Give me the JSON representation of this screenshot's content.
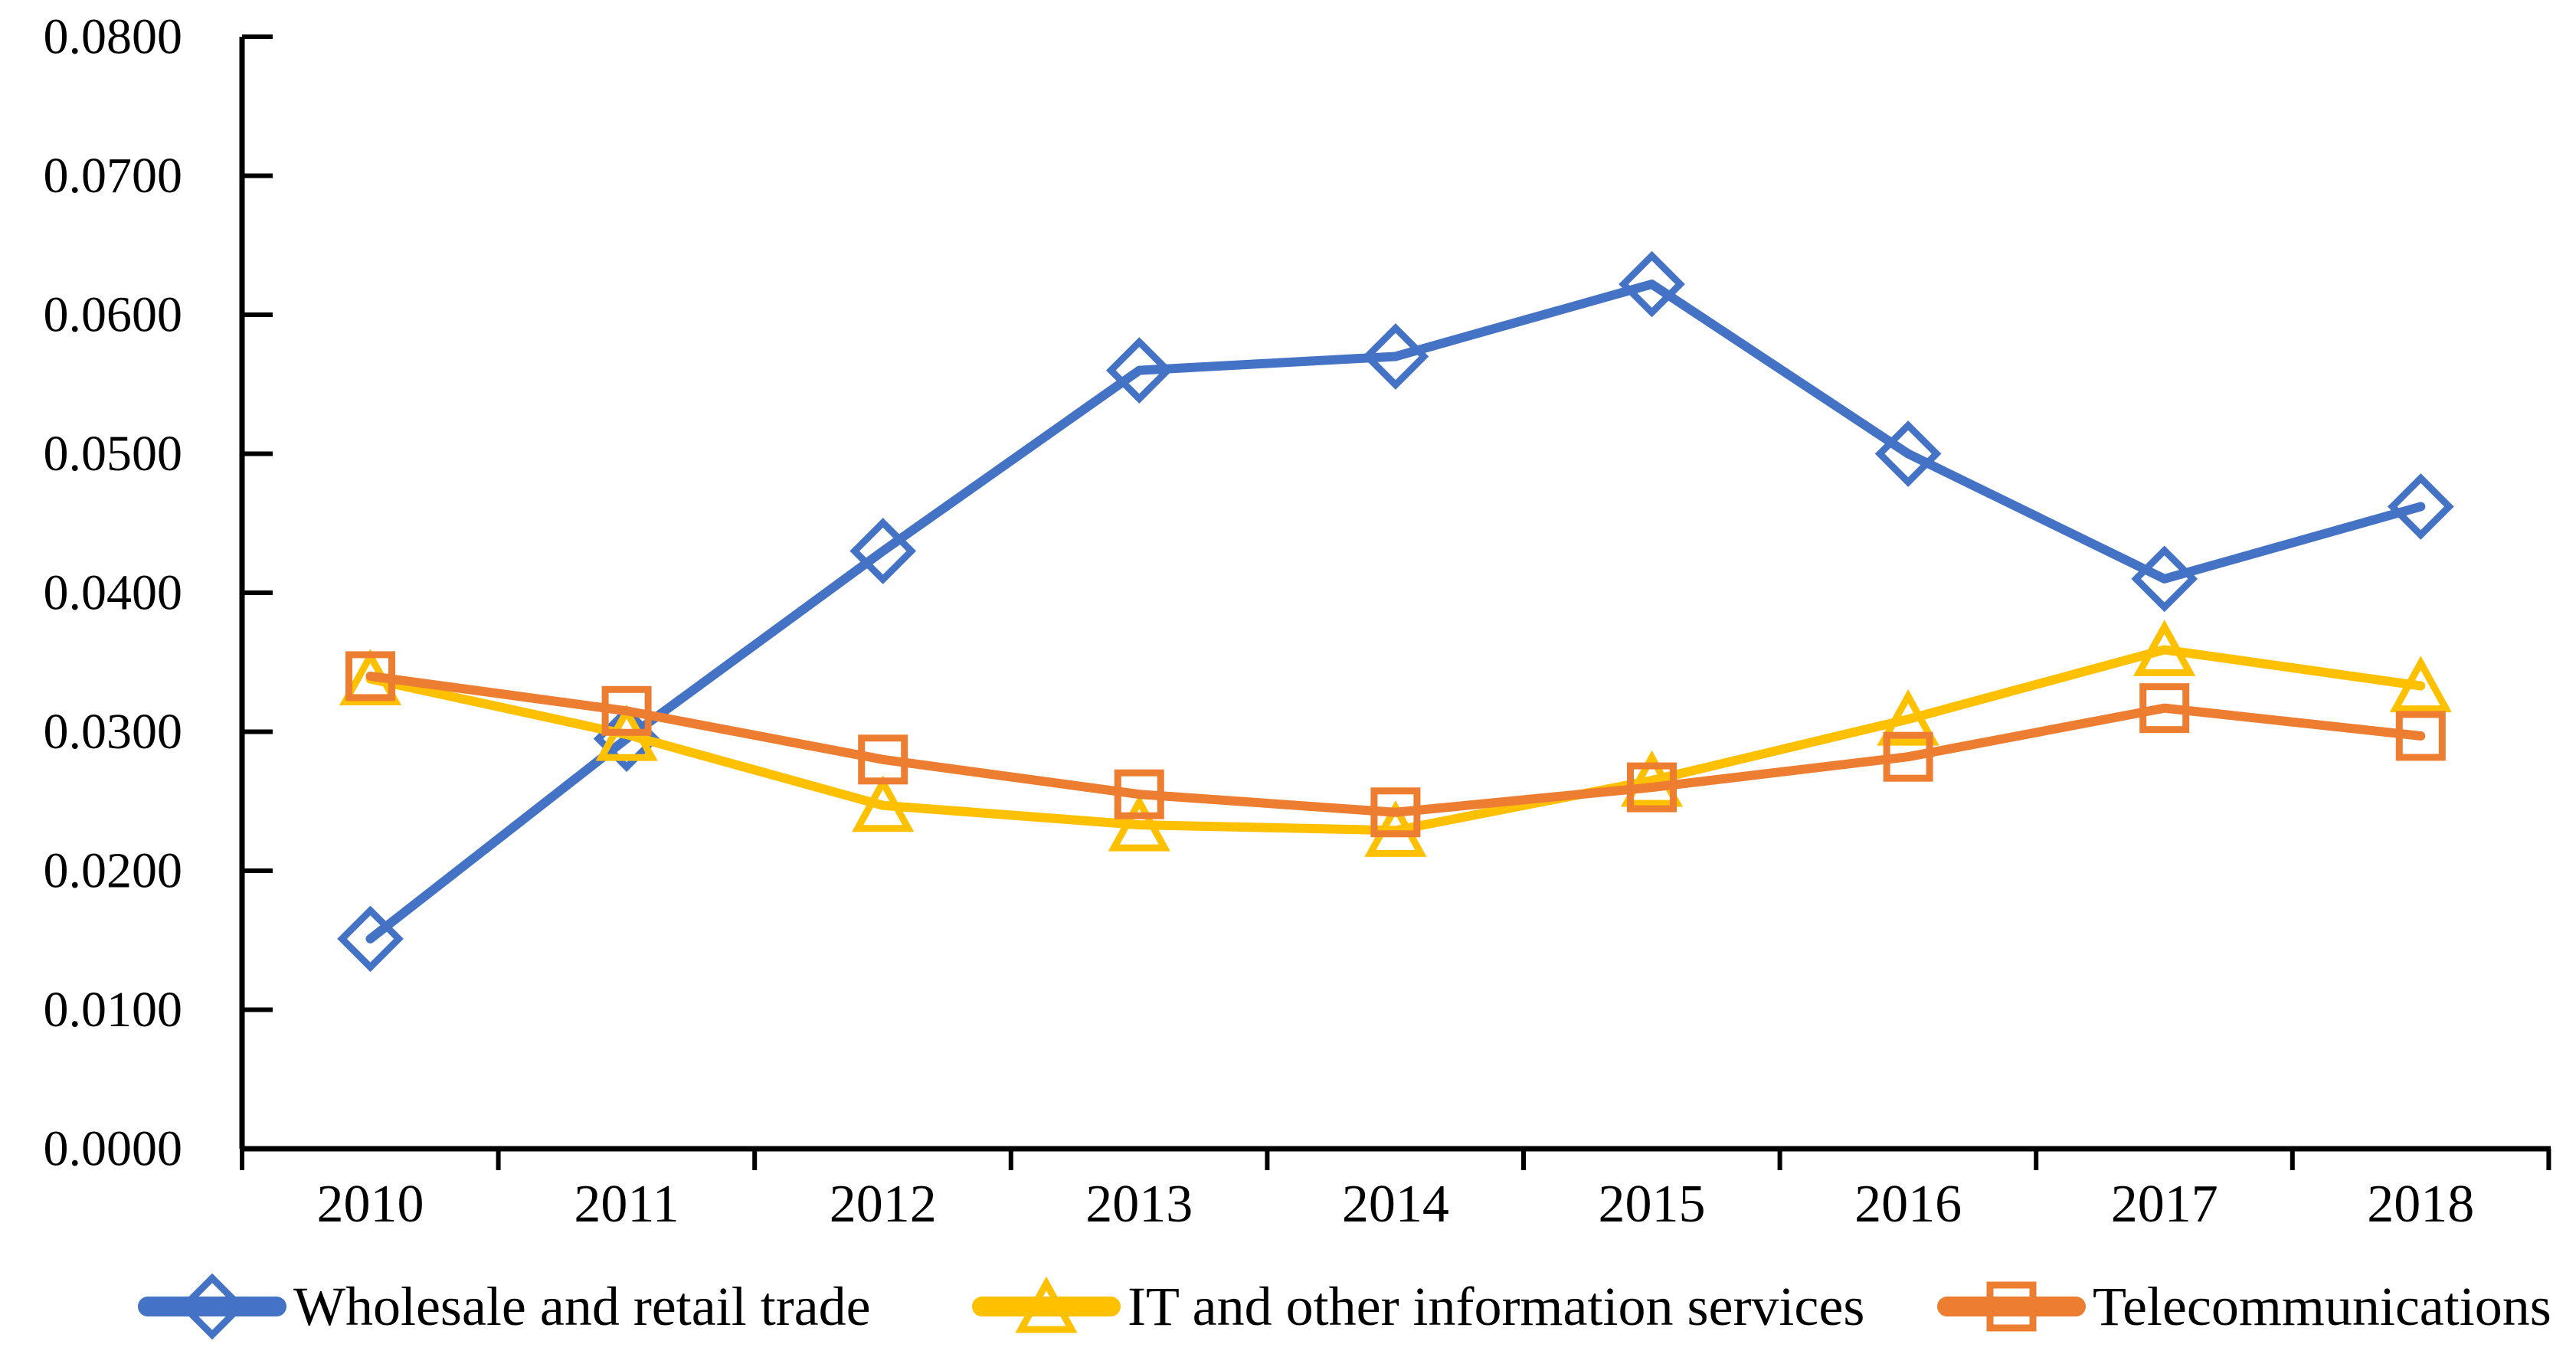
{
  "chart_data": {
    "type": "line",
    "title": "",
    "categories": [
      "2010",
      "2011",
      "2012",
      "2013",
      "2014",
      "2015",
      "2016",
      "2017",
      "2018"
    ],
    "series": [
      {
        "name": "Wholesale and retail trade",
        "color": "#4472C4",
        "marker": "diamond",
        "values": [
          0.0151,
          0.0295,
          0.043,
          0.056,
          0.057,
          0.0622,
          0.05,
          0.041,
          0.0462
        ]
      },
      {
        "name": "IT and other information services",
        "color": "#FFC000",
        "marker": "triangle",
        "values": [
          0.0338,
          0.0298,
          0.0247,
          0.0233,
          0.0229,
          0.0265,
          0.0309,
          0.0359,
          0.0333
        ]
      },
      {
        "name": "Telecommunications",
        "color": "#ED7D31",
        "marker": "square",
        "values": [
          0.034,
          0.0315,
          0.028,
          0.0255,
          0.0242,
          0.026,
          0.0282,
          0.0317,
          0.0297
        ]
      }
    ],
    "y_axis": {
      "min": 0.0,
      "max": 0.08,
      "step": 0.01,
      "tick_labels": [
        "0.0000",
        "0.0100",
        "0.0200",
        "0.0300",
        "0.0400",
        "0.0500",
        "0.0600",
        "0.0700",
        "0.0800"
      ]
    },
    "x_axis": {
      "tick_labels": [
        "2010",
        "2011",
        "2012",
        "2013",
        "2014",
        "2015",
        "2016",
        "2017",
        "2018"
      ]
    },
    "legend_position": "bottom",
    "grid": false,
    "background": "#FFFFFF",
    "axis_color": "#000000"
  }
}
